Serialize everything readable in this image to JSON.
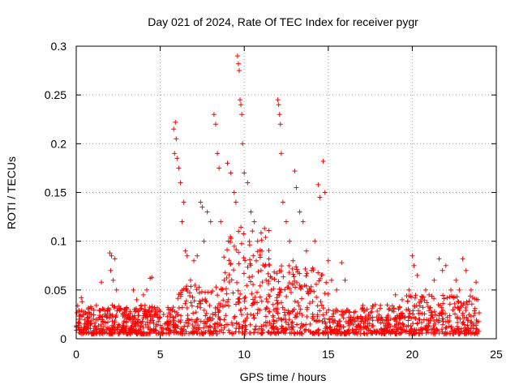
{
  "chart_data": {
    "type": "scatter",
    "title": "Day 021 of 2024, Rate Of TEC Index for receiver pygr",
    "xlabel": "GPS time / hours",
    "ylabel": "ROTI / TECUs",
    "xlim": [
      0,
      25
    ],
    "ylim": [
      0,
      0.3
    ],
    "x_ticks": [
      0,
      5,
      10,
      15,
      20,
      25
    ],
    "y_ticks": [
      0,
      0.05,
      0.1,
      0.15,
      0.2,
      0.25,
      0.3
    ],
    "x_tick_labels": [
      "0",
      "5",
      "10",
      "15",
      "20",
      "25"
    ],
    "y_tick_labels": [
      "0",
      "0.05",
      "0.1",
      "0.15",
      "0.2",
      "0.25",
      "0.3"
    ],
    "grid": true,
    "marker": "+",
    "color": "#ff0000",
    "series": [
      {
        "points": [
          [
            0.1,
            0.012
          ],
          [
            0.2,
            0.02
          ],
          [
            0.3,
            0.042
          ],
          [
            0.35,
            0.038
          ],
          [
            0.5,
            0.015
          ],
          [
            0.7,
            0.018
          ],
          [
            0.9,
            0.025
          ],
          [
            1.1,
            0.013
          ],
          [
            1.3,
            0.02
          ],
          [
            1.5,
            0.058
          ],
          [
            1.6,
            0.03
          ],
          [
            1.8,
            0.022
          ],
          [
            2.0,
            0.088
          ],
          [
            2.05,
            0.07
          ],
          [
            2.1,
            0.085
          ],
          [
            2.2,
            0.06
          ],
          [
            2.3,
            0.082
          ],
          [
            2.4,
            0.05
          ],
          [
            2.6,
            0.03
          ],
          [
            2.8,
            0.025
          ],
          [
            3.0,
            0.032
          ],
          [
            3.2,
            0.028
          ],
          [
            3.4,
            0.05
          ],
          [
            3.6,
            0.04
          ],
          [
            3.8,
            0.03
          ],
          [
            4.0,
            0.045
          ],
          [
            4.2,
            0.05
          ],
          [
            4.4,
            0.062
          ],
          [
            4.5,
            0.063
          ],
          [
            4.7,
            0.03
          ],
          [
            5.0,
            0.028
          ],
          [
            5.2,
            0.025
          ],
          [
            5.5,
            0.03
          ],
          [
            5.8,
            0.215
          ],
          [
            5.85,
            0.19
          ],
          [
            5.9,
            0.222
          ],
          [
            5.95,
            0.205
          ],
          [
            6.0,
            0.185
          ],
          [
            6.1,
            0.175
          ],
          [
            6.2,
            0.16
          ],
          [
            6.3,
            0.12
          ],
          [
            6.4,
            0.14
          ],
          [
            6.5,
            0.09
          ],
          [
            6.6,
            0.085
          ],
          [
            6.8,
            0.06
          ],
          [
            7.0,
            0.08
          ],
          [
            7.2,
            0.085
          ],
          [
            7.4,
            0.14
          ],
          [
            7.5,
            0.135
          ],
          [
            7.6,
            0.1
          ],
          [
            7.8,
            0.13
          ],
          [
            8.0,
            0.12
          ],
          [
            8.2,
            0.23
          ],
          [
            8.3,
            0.22
          ],
          [
            8.4,
            0.19
          ],
          [
            8.5,
            0.175
          ],
          [
            8.6,
            0.12
          ],
          [
            8.8,
            0.06
          ],
          [
            9.0,
            0.18
          ],
          [
            9.2,
            0.17
          ],
          [
            9.4,
            0.15
          ],
          [
            9.5,
            0.14
          ],
          [
            9.6,
            0.29
          ],
          [
            9.65,
            0.282
          ],
          [
            9.7,
            0.275
          ],
          [
            9.75,
            0.245
          ],
          [
            9.8,
            0.24
          ],
          [
            9.85,
            0.23
          ],
          [
            9.9,
            0.2
          ],
          [
            10.0,
            0.17
          ],
          [
            10.2,
            0.16
          ],
          [
            10.4,
            0.13
          ],
          [
            10.6,
            0.12
          ],
          [
            10.8,
            0.1
          ],
          [
            11.0,
            0.07
          ],
          [
            11.3,
            0.06
          ],
          [
            11.6,
            0.05
          ],
          [
            12.0,
            0.245
          ],
          [
            12.05,
            0.24
          ],
          [
            12.1,
            0.23
          ],
          [
            12.15,
            0.22
          ],
          [
            12.2,
            0.19
          ],
          [
            12.3,
            0.14
          ],
          [
            12.5,
            0.12
          ],
          [
            12.7,
            0.1
          ],
          [
            12.9,
            0.08
          ],
          [
            13.0,
            0.172
          ],
          [
            13.1,
            0.155
          ],
          [
            13.3,
            0.13
          ],
          [
            13.5,
            0.12
          ],
          [
            13.7,
            0.09
          ],
          [
            14.0,
            0.07
          ],
          [
            14.2,
            0.1
          ],
          [
            14.4,
            0.158
          ],
          [
            14.5,
            0.145
          ],
          [
            14.7,
            0.182
          ],
          [
            14.8,
            0.15
          ],
          [
            15.0,
            0.08
          ],
          [
            15.2,
            0.06
          ],
          [
            15.5,
            0.05
          ],
          [
            15.8,
            0.078
          ],
          [
            16.0,
            0.06
          ],
          [
            16.3,
            0.02
          ],
          [
            16.6,
            0.018
          ],
          [
            17.0,
            0.03
          ],
          [
            17.4,
            0.025
          ],
          [
            17.8,
            0.035
          ],
          [
            18.2,
            0.02
          ],
          [
            18.6,
            0.03
          ],
          [
            19.0,
            0.045
          ],
          [
            19.4,
            0.04
          ],
          [
            19.8,
            0.05
          ],
          [
            20.0,
            0.085
          ],
          [
            20.1,
            0.075
          ],
          [
            20.3,
            0.065
          ],
          [
            20.5,
            0.04
          ],
          [
            20.8,
            0.05
          ],
          [
            21.0,
            0.045
          ],
          [
            21.3,
            0.06
          ],
          [
            21.6,
            0.082
          ],
          [
            21.8,
            0.07
          ],
          [
            22.0,
            0.075
          ],
          [
            22.3,
            0.05
          ],
          [
            22.6,
            0.06
          ],
          [
            22.8,
            0.05
          ],
          [
            23.0,
            0.082
          ],
          [
            23.2,
            0.07
          ],
          [
            23.5,
            0.05
          ],
          [
            23.8,
            0.058
          ],
          [
            23.9,
            0.04
          ]
        ]
      }
    ]
  }
}
